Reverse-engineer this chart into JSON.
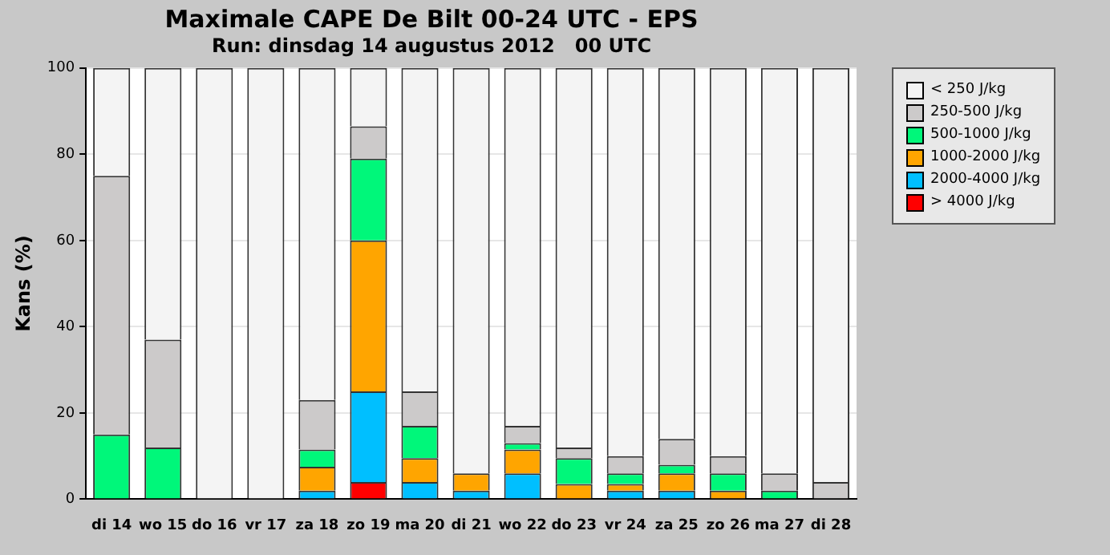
{
  "chart_data": {
    "type": "bar",
    "title": "Maximale CAPE De Bilt 00-24 UTC - EPS",
    "subtitle": "Run: dinsdag 14 augustus 2012   00 UTC",
    "ylabel": "Kans (%)",
    "categories": [
      "di 14",
      "wo 15",
      "do 16",
      "vr 17",
      "za 18",
      "zo 19",
      "ma 20",
      "di 21",
      "wo 22",
      "do 23",
      "vr 24",
      "za 25",
      "zo 26",
      "ma 27",
      "di 28"
    ],
    "stacked": true,
    "ylim": [
      0,
      100
    ],
    "yticks": [
      0,
      20,
      40,
      60,
      80,
      100
    ],
    "grid": "y",
    "legend": "right",
    "series": [
      {
        "name": "> 4000 J/kg",
        "color": "#ff0000",
        "values": [
          0,
          0,
          0,
          0,
          0,
          4,
          0,
          0,
          0,
          0,
          0,
          0,
          0,
          0,
          0
        ]
      },
      {
        "name": "2000-4000 J/kg",
        "color": "#00bfff",
        "values": [
          0,
          0,
          0,
          0,
          2,
          21,
          4,
          2,
          6,
          0,
          2,
          2,
          0,
          0,
          0
        ]
      },
      {
        "name": "1000-2000 J/kg",
        "color": "#ffa500",
        "values": [
          0,
          0,
          0,
          0,
          5.5,
          35,
          5.5,
          4,
          5.5,
          3.5,
          1.5,
          4,
          2,
          0,
          0
        ]
      },
      {
        "name": "500-1000 J/kg",
        "color": "#00f77a",
        "values": [
          15,
          12,
          0,
          0,
          4,
          19,
          7.5,
          0,
          1.5,
          6,
          2.5,
          2,
          4,
          2,
          0
        ]
      },
      {
        "name": "250-500 J/kg",
        "color": "#cccaca",
        "values": [
          60,
          25,
          0,
          0,
          11.5,
          7.5,
          8,
          0,
          4,
          2.5,
          4,
          6,
          4,
          4,
          4
        ]
      },
      {
        "name": "< 250 J/kg",
        "color": "#f4f4f4",
        "values": [
          25,
          63,
          100,
          100,
          77,
          13.5,
          75,
          94,
          83,
          88,
          90,
          86,
          90,
          94,
          96
        ]
      }
    ]
  }
}
